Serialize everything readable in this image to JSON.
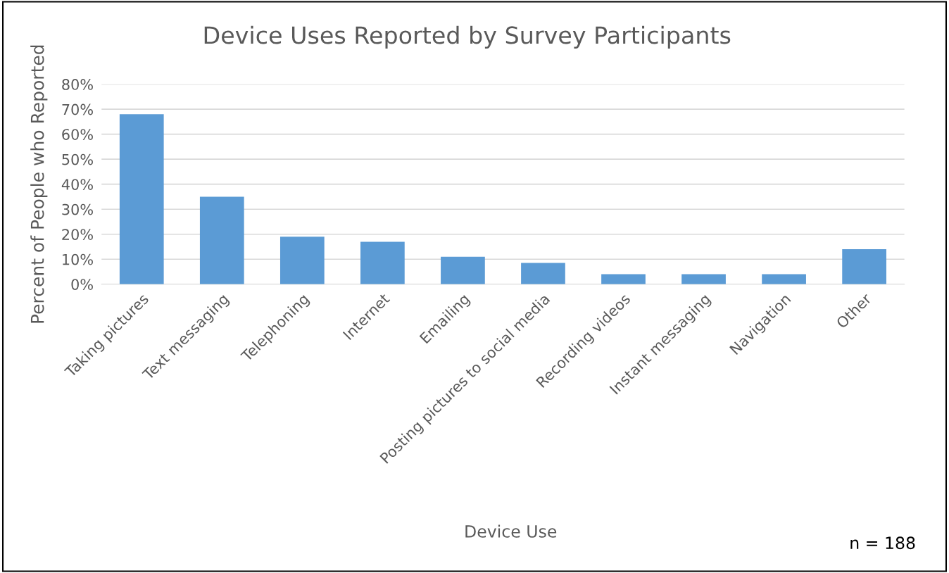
{
  "chart_data": {
    "type": "bar",
    "title": "Device Uses Reported by Survey Participants",
    "xlabel": "Device Use",
    "ylabel": "Percent of People who Reported",
    "categories": [
      "Taking pictures",
      "Text messaging",
      "Telephoning",
      "Internet",
      "Emailing",
      "Posting pictures to social media",
      "Recording videos",
      "Instant messaging",
      "Navigation",
      "Other"
    ],
    "values": [
      68,
      35,
      19,
      17,
      11,
      8.5,
      4,
      4,
      4,
      14
    ],
    "color": "#5b9bd5",
    "ylim": [
      0,
      80
    ],
    "yticks": [
      {
        "value": 0,
        "label": "0%"
      },
      {
        "value": 10,
        "label": "10%"
      },
      {
        "value": 20,
        "label": "20%"
      },
      {
        "value": 30,
        "label": "30%"
      },
      {
        "value": 40,
        "label": "40%"
      },
      {
        "value": 50,
        "label": "50%"
      },
      {
        "value": 60,
        "label": "60%"
      },
      {
        "value": 70,
        "label": "70%"
      },
      {
        "value": 80,
        "label": "80%"
      }
    ],
    "grid": "y",
    "annotations": [
      "n = 188"
    ]
  }
}
